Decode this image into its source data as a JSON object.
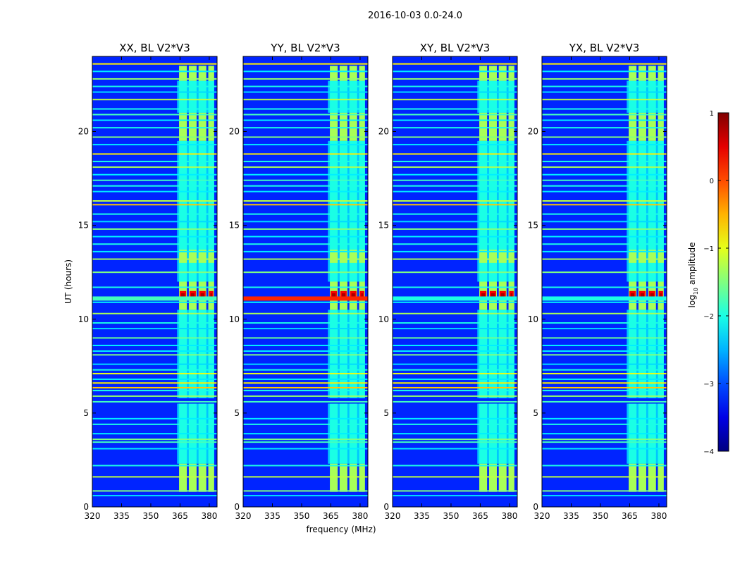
{
  "chart_data": {
    "type": "heatmap",
    "suptitle": "2016-10-03 0.0-24.0",
    "xlabel": "frequency (MHz)",
    "ylabel": "UT (hours)",
    "x_ticks": [
      "320",
      "335",
      "350",
      "365",
      "380"
    ],
    "x_tick_values": [
      320,
      335,
      350,
      365,
      380
    ],
    "y_ticks": [
      "0",
      "5",
      "10",
      "15",
      "20"
    ],
    "y_tick_values": [
      0,
      5,
      10,
      15,
      20
    ],
    "xlim": [
      320,
      384
    ],
    "ylim": [
      0,
      24
    ],
    "colorbar": {
      "label_main": "log",
      "label_sub": "10",
      "label_rest": " amplitude",
      "ticks": [
        "1",
        "0",
        "−1",
        "−2",
        "−3",
        "−4"
      ],
      "tick_values": [
        1,
        0,
        -1,
        -2,
        -3,
        -4
      ],
      "range": [
        -4,
        1
      ],
      "colormap": "jet"
    },
    "background_log_amplitude": -3.2,
    "rfi_block_columns_mhz": [
      [
        364.5,
        368.5
      ],
      [
        369.5,
        373.5
      ],
      [
        374.5,
        378.5
      ],
      [
        379.5,
        382.5
      ]
    ],
    "rfi_block_range_mhz": [
      363.5,
      382.5
    ],
    "panels": [
      {
        "title": "XX, BL V2*V3",
        "show_ylabel": true,
        "show_xlabel": false,
        "strong_line_h": 11.1,
        "strong_line_level": -1.8,
        "block_on_hours": [
          [
            0.8,
            2.3
          ],
          [
            10.5,
            12.0
          ],
          [
            13.0,
            13.7
          ],
          [
            19.5,
            21.0
          ],
          [
            22.7,
            23.5
          ]
        ],
        "block_mid_hours": [
          [
            2.3,
            5.5
          ],
          [
            5.8,
            10.5
          ],
          [
            12.0,
            19.5
          ],
          [
            21.0,
            22.7
          ]
        ],
        "hot_band_hours": [
          11.0,
          11.5
        ]
      },
      {
        "title": "YY, BL V2*V3",
        "show_ylabel": false,
        "show_xlabel": true,
        "strong_line_h": 11.1,
        "strong_line_level": 0.2,
        "block_on_hours": [
          [
            0.8,
            2.3
          ],
          [
            10.5,
            12.0
          ],
          [
            13.0,
            13.7
          ],
          [
            19.5,
            21.0
          ],
          [
            22.7,
            23.5
          ]
        ],
        "block_mid_hours": [
          [
            2.3,
            5.5
          ],
          [
            5.8,
            10.5
          ],
          [
            12.0,
            19.5
          ],
          [
            21.0,
            22.7
          ]
        ],
        "hot_band_hours": [
          11.0,
          11.5
        ]
      },
      {
        "title": "XY, BL V2*V3",
        "show_ylabel": false,
        "show_xlabel": false,
        "strong_line_h": 11.1,
        "strong_line_level": -2.0,
        "block_on_hours": [
          [
            0.8,
            2.3
          ],
          [
            10.5,
            12.0
          ],
          [
            13.0,
            13.7
          ],
          [
            19.5,
            21.0
          ],
          [
            22.7,
            23.5
          ]
        ],
        "block_mid_hours": [
          [
            2.3,
            5.5
          ],
          [
            5.8,
            10.5
          ],
          [
            12.0,
            19.5
          ],
          [
            21.0,
            22.7
          ]
        ],
        "hot_band_hours": [
          11.0,
          11.5
        ]
      },
      {
        "title": "YX, BL V2*V3",
        "show_ylabel": false,
        "show_xlabel": false,
        "strong_line_h": 11.1,
        "strong_line_level": -2.0,
        "block_on_hours": [
          [
            0.8,
            2.3
          ],
          [
            10.5,
            12.0
          ],
          [
            13.0,
            13.7
          ],
          [
            19.5,
            21.0
          ],
          [
            22.7,
            23.5
          ]
        ],
        "block_mid_hours": [
          [
            2.3,
            5.5
          ],
          [
            5.8,
            10.5
          ],
          [
            12.0,
            19.5
          ],
          [
            21.0,
            22.7
          ]
        ],
        "hot_band_hours": [
          11.0,
          11.5
        ]
      }
    ],
    "rfi_lines": [
      {
        "h": 0.6,
        "level": -2.3
      },
      {
        "h": 0.85,
        "level": -1.5
      },
      {
        "h": 1.6,
        "level": -1.2
      },
      {
        "h": 2.2,
        "level": -2.0
      },
      {
        "h": 3.1,
        "level": -2.2
      },
      {
        "h": 3.45,
        "level": -1.8
      },
      {
        "h": 3.6,
        "level": -1.5
      },
      {
        "h": 3.9,
        "level": -2.2
      },
      {
        "h": 4.4,
        "level": -2.0
      },
      {
        "h": 4.7,
        "level": -2.2
      },
      {
        "h": 5.6,
        "level": -1.8
      },
      {
        "h": 5.9,
        "level": -1.4
      },
      {
        "h": 6.2,
        "level": -2.0
      },
      {
        "h": 6.35,
        "level": -0.6
      },
      {
        "h": 6.6,
        "level": -0.8
      },
      {
        "h": 6.8,
        "level": -2.2
      },
      {
        "h": 7.1,
        "level": -1.0
      },
      {
        "h": 7.3,
        "level": -2.0
      },
      {
        "h": 7.6,
        "level": -2.3
      },
      {
        "h": 8.1,
        "level": -1.5
      },
      {
        "h": 8.3,
        "level": -2.2
      },
      {
        "h": 8.6,
        "level": -2.2
      },
      {
        "h": 9.0,
        "level": -1.6
      },
      {
        "h": 9.5,
        "level": -2.3
      },
      {
        "h": 9.8,
        "level": -2.0
      },
      {
        "h": 10.3,
        "level": -1.3
      },
      {
        "h": 10.9,
        "level": -2.2
      },
      {
        "h": 11.7,
        "level": -2.0
      },
      {
        "h": 12.5,
        "level": -1.5
      },
      {
        "h": 13.2,
        "level": -1.3
      },
      {
        "h": 13.6,
        "level": -2.2
      },
      {
        "h": 14.0,
        "level": -2.0
      },
      {
        "h": 14.4,
        "level": -2.2
      },
      {
        "h": 14.8,
        "level": -1.5
      },
      {
        "h": 15.2,
        "level": -2.3
      },
      {
        "h": 15.6,
        "level": -2.0
      },
      {
        "h": 16.1,
        "level": -0.6
      },
      {
        "h": 16.3,
        "level": -1.2
      },
      {
        "h": 16.8,
        "level": -2.2
      },
      {
        "h": 17.1,
        "level": -2.0
      },
      {
        "h": 17.4,
        "level": -1.8
      },
      {
        "h": 17.7,
        "level": -2.2
      },
      {
        "h": 18.1,
        "level": -1.3
      },
      {
        "h": 18.4,
        "level": -2.0
      },
      {
        "h": 18.8,
        "level": -0.8
      },
      {
        "h": 19.3,
        "level": -2.2
      },
      {
        "h": 19.7,
        "level": -1.5
      },
      {
        "h": 20.2,
        "level": -2.0
      },
      {
        "h": 20.6,
        "level": -2.2
      },
      {
        "h": 20.9,
        "level": -1.8
      },
      {
        "h": 21.2,
        "level": -2.0
      },
      {
        "h": 21.7,
        "level": -1.2
      },
      {
        "h": 22.1,
        "level": -2.3
      },
      {
        "h": 22.4,
        "level": -2.0
      },
      {
        "h": 22.8,
        "level": -1.4
      },
      {
        "h": 23.2,
        "level": -2.2
      },
      {
        "h": 23.6,
        "level": -0.8
      }
    ]
  }
}
